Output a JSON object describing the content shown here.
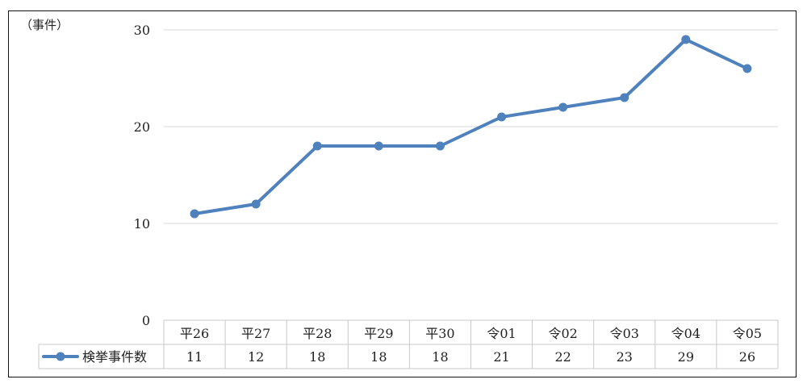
{
  "chart_data": {
    "type": "line",
    "unit_label": "（事件）",
    "categories": [
      "平26",
      "平27",
      "平28",
      "平29",
      "平30",
      "令01",
      "令02",
      "令03",
      "令04",
      "令05"
    ],
    "series": [
      {
        "name": "検挙事件数",
        "values": [
          11,
          12,
          18,
          18,
          18,
          21,
          22,
          23,
          29,
          26
        ],
        "color": "#4f81bd"
      }
    ],
    "ylim": [
      0,
      30
    ],
    "yticks": [
      0,
      10,
      20,
      30
    ],
    "grid": true,
    "legend_placement": "data-table-left"
  }
}
